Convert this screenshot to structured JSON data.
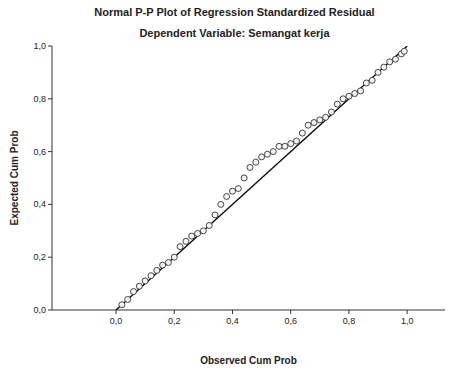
{
  "chart_data": {
    "type": "scatter",
    "title": "Normal P-P Plot of Regression Standardized Residual",
    "subtitle": "Dependent Variable: Semangat kerja",
    "x_label": "Observed Cum Prob",
    "y_label": "Expected Cum Prob",
    "xlim": [
      -0.22,
      1.13
    ],
    "ylim": [
      0,
      1
    ],
    "xticks": [
      {
        "value": 0,
        "label": "0,0"
      },
      {
        "value": 0.2,
        "label": "0,2"
      },
      {
        "value": 0.4,
        "label": "0,4"
      },
      {
        "value": 0.6,
        "label": "0,6"
      },
      {
        "value": 0.8,
        "label": "0,8"
      },
      {
        "value": 1,
        "label": "1,0"
      }
    ],
    "yticks": [
      {
        "value": 0,
        "label": "0,0"
      },
      {
        "value": 0.2,
        "label": "0,2"
      },
      {
        "value": 0.4,
        "label": "0,4"
      },
      {
        "value": 0.6,
        "label": "0,6"
      },
      {
        "value": 0.8,
        "label": "0,8"
      },
      {
        "value": 1,
        "label": "1,0"
      }
    ],
    "grid": false,
    "series": [
      {
        "type": "scatter",
        "marker": "circle",
        "color": "#333333",
        "x": [
          0.02,
          0.04,
          0.06,
          0.08,
          0.1,
          0.12,
          0.14,
          0.16,
          0.18,
          0.2,
          0.22,
          0.24,
          0.26,
          0.28,
          0.3,
          0.32,
          0.34,
          0.36,
          0.38,
          0.4,
          0.42,
          0.44,
          0.46,
          0.48,
          0.5,
          0.52,
          0.54,
          0.56,
          0.58,
          0.6,
          0.62,
          0.64,
          0.66,
          0.68,
          0.7,
          0.72,
          0.74,
          0.76,
          0.78,
          0.8,
          0.82,
          0.84,
          0.86,
          0.88,
          0.9,
          0.92,
          0.94,
          0.96,
          0.98,
          0.99
        ],
        "values": [
          0.02,
          0.04,
          0.07,
          0.09,
          0.11,
          0.13,
          0.15,
          0.17,
          0.18,
          0.2,
          0.24,
          0.26,
          0.28,
          0.29,
          0.3,
          0.32,
          0.36,
          0.4,
          0.43,
          0.45,
          0.46,
          0.5,
          0.54,
          0.56,
          0.58,
          0.59,
          0.6,
          0.62,
          0.62,
          0.63,
          0.64,
          0.67,
          0.7,
          0.71,
          0.72,
          0.73,
          0.75,
          0.78,
          0.8,
          0.81,
          0.82,
          0.83,
          0.86,
          0.87,
          0.9,
          0.92,
          0.94,
          0.95,
          0.97,
          0.98
        ]
      },
      {
        "type": "line",
        "line_style": "solid",
        "color": "#000000",
        "x": [
          0,
          1
        ],
        "values": [
          0,
          1
        ]
      }
    ]
  }
}
